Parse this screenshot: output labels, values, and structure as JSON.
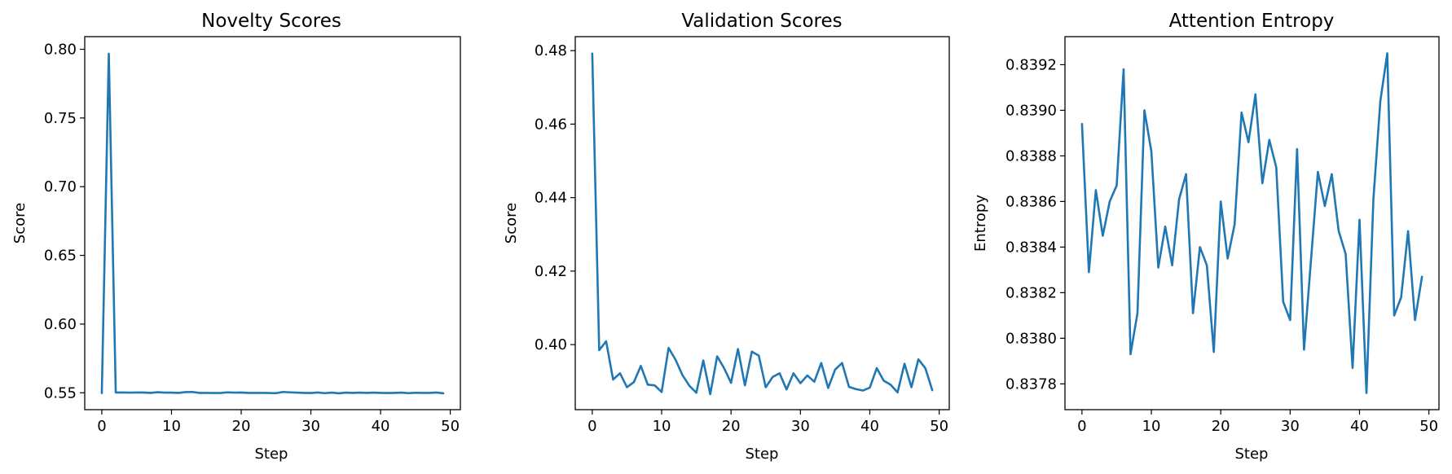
{
  "colors": {
    "series": "#1f77b4",
    "axes": "#000000",
    "background": "#ffffff"
  },
  "chart_data": [
    {
      "type": "line",
      "title": "Novelty Scores",
      "xlabel": "Step",
      "ylabel": "Score",
      "grid": false,
      "xlim": [
        -2.45,
        51.45
      ],
      "ylim": [
        0.5377,
        0.8092
      ],
      "xticks": [
        0,
        10,
        20,
        30,
        40,
        50
      ],
      "xtick_labels": [
        "0",
        "10",
        "20",
        "30",
        "40",
        "50"
      ],
      "yticks": [
        0.55,
        0.6,
        0.65,
        0.7,
        0.75,
        0.8
      ],
      "ytick_labels": [
        "0.55",
        "0.60",
        "0.65",
        "0.70",
        "0.75",
        "0.80"
      ],
      "series": [
        {
          "color": "#1f77b4",
          "x": [
            0,
            1,
            2,
            3,
            4,
            5,
            6,
            7,
            8,
            9,
            10,
            11,
            12,
            13,
            14,
            15,
            16,
            17,
            18,
            19,
            20,
            21,
            22,
            23,
            24,
            25,
            26,
            27,
            28,
            29,
            30,
            31,
            32,
            33,
            34,
            35,
            36,
            37,
            38,
            39,
            40,
            41,
            42,
            43,
            44,
            45,
            46,
            47,
            48,
            49
          ],
          "y": [
            0.5498,
            0.7968,
            0.5502,
            0.5502,
            0.5501,
            0.5502,
            0.5502,
            0.5499,
            0.5504,
            0.5501,
            0.5501,
            0.5499,
            0.5505,
            0.5506,
            0.5499,
            0.5499,
            0.5498,
            0.5498,
            0.5503,
            0.5501,
            0.5502,
            0.5499,
            0.5499,
            0.5499,
            0.5498,
            0.5497,
            0.5506,
            0.5503,
            0.5501,
            0.5499,
            0.5498,
            0.5502,
            0.5497,
            0.5501,
            0.5496,
            0.5501,
            0.5499,
            0.5501,
            0.5499,
            0.5501,
            0.5499,
            0.5498,
            0.5499,
            0.5501,
            0.5497,
            0.55,
            0.5499,
            0.5499,
            0.5502,
            0.5496
          ]
        }
      ]
    },
    {
      "type": "line",
      "title": "Validation Scores",
      "xlabel": "Step",
      "ylabel": "Score",
      "grid": false,
      "xlim": [
        -2.45,
        51.45
      ],
      "ylim": [
        0.3823,
        0.4838
      ],
      "xticks": [
        0,
        10,
        20,
        30,
        40,
        50
      ],
      "xtick_labels": [
        "0",
        "10",
        "20",
        "30",
        "40",
        "50"
      ],
      "yticks": [
        0.4,
        0.42,
        0.44,
        0.46,
        0.48
      ],
      "ytick_labels": [
        "0.40",
        "0.42",
        "0.44",
        "0.46",
        "0.48"
      ],
      "series": [
        {
          "color": "#1f77b4",
          "x": [
            0,
            1,
            2,
            3,
            4,
            5,
            6,
            7,
            8,
            9,
            10,
            11,
            12,
            13,
            14,
            15,
            16,
            17,
            18,
            19,
            20,
            21,
            22,
            23,
            24,
            25,
            26,
            27,
            28,
            29,
            30,
            31,
            32,
            33,
            34,
            35,
            36,
            37,
            38,
            39,
            40,
            41,
            42,
            43,
            44,
            45,
            46,
            47,
            48,
            49
          ],
          "y": [
            0.4792,
            0.3985,
            0.4009,
            0.3905,
            0.3922,
            0.3884,
            0.3898,
            0.3942,
            0.3891,
            0.3889,
            0.3871,
            0.3991,
            0.3959,
            0.3917,
            0.3888,
            0.3869,
            0.3957,
            0.3865,
            0.3968,
            0.3936,
            0.3896,
            0.3988,
            0.3889,
            0.3981,
            0.397,
            0.3884,
            0.3912,
            0.3922,
            0.3878,
            0.3922,
            0.3895,
            0.3916,
            0.3899,
            0.395,
            0.3882,
            0.3932,
            0.395,
            0.3885,
            0.3879,
            0.3875,
            0.3883,
            0.3936,
            0.3902,
            0.3891,
            0.387,
            0.3948,
            0.3884,
            0.396,
            0.3936,
            0.3876
          ]
        }
      ]
    },
    {
      "type": "line",
      "title": "Attention Entropy",
      "xlabel": "Step",
      "ylabel": "Entropy",
      "grid": false,
      "xlim": [
        -2.45,
        51.45
      ],
      "ylim": [
        0.837687,
        0.839323
      ],
      "xticks": [
        0,
        10,
        20,
        30,
        40,
        50
      ],
      "xtick_labels": [
        "0",
        "10",
        "20",
        "30",
        "40",
        "50"
      ],
      "yticks": [
        0.8378,
        0.838,
        0.8382,
        0.8384,
        0.8386,
        0.8388,
        0.839,
        0.8392
      ],
      "ytick_labels": [
        "0.8378",
        "0.8380",
        "0.8382",
        "0.8384",
        "0.8386",
        "0.8388",
        "0.8390",
        "0.8392"
      ],
      "series": [
        {
          "color": "#1f77b4",
          "x": [
            0,
            1,
            2,
            3,
            4,
            5,
            6,
            7,
            8,
            9,
            10,
            11,
            12,
            13,
            14,
            15,
            16,
            17,
            18,
            19,
            20,
            21,
            22,
            23,
            24,
            25,
            26,
            27,
            28,
            29,
            30,
            31,
            32,
            33,
            34,
            35,
            36,
            37,
            38,
            39,
            40,
            41,
            42,
            43,
            44,
            45,
            46,
            47,
            48,
            49
          ],
          "y": [
            0.83894,
            0.83829,
            0.83865,
            0.83845,
            0.8386,
            0.83867,
            0.83918,
            0.83793,
            0.83811,
            0.839,
            0.83882,
            0.83831,
            0.83849,
            0.83832,
            0.83861,
            0.83872,
            0.83811,
            0.8384,
            0.83832,
            0.83794,
            0.8386,
            0.83835,
            0.8385,
            0.83899,
            0.83886,
            0.83907,
            0.83868,
            0.83887,
            0.83875,
            0.83816,
            0.83808,
            0.83883,
            0.83795,
            0.83834,
            0.83873,
            0.83858,
            0.83872,
            0.83847,
            0.83837,
            0.83787,
            0.83852,
            0.83776,
            0.83861,
            0.83904,
            0.83925,
            0.8381,
            0.83818,
            0.83847,
            0.83808,
            0.83827
          ]
        }
      ]
    }
  ]
}
